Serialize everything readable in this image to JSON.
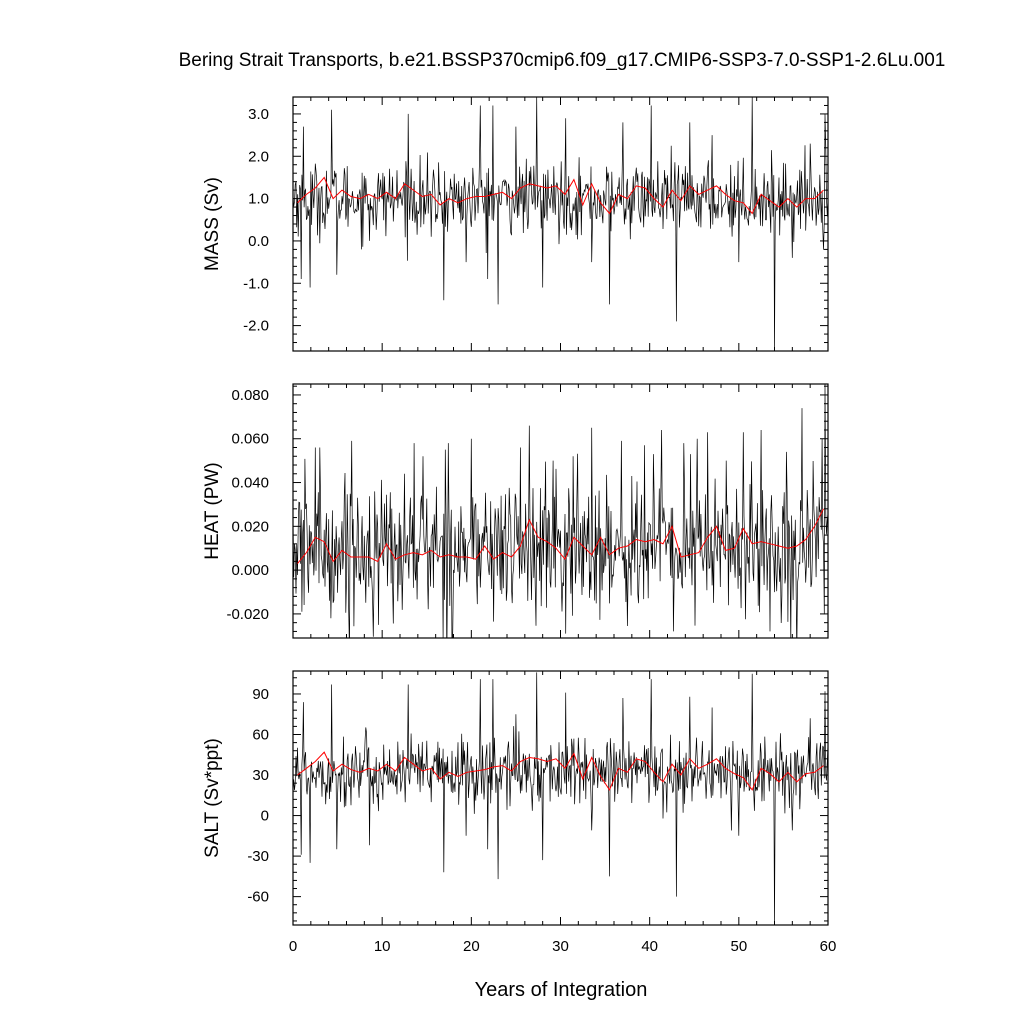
{
  "title": "Bering Strait Transports, b.e21.BSSP370cmip6.f09_g17.CMIP6-SSP3-7.0-SSP1-2.6Lu.001",
  "xlabel": "Years of Integration",
  "colors": {
    "monthly": "#000000",
    "annual": "#ff0000"
  },
  "chart_data": [
    {
      "type": "line",
      "ylabel": "MASS (Sv)",
      "xlim": [
        0,
        60
      ],
      "ylim": [
        -2.6,
        3.4
      ],
      "x_ticks": [
        0,
        10,
        20,
        30,
        40,
        50,
        60
      ],
      "y_ticks": [
        -2.0,
        -1.0,
        0.0,
        1.0,
        2.0,
        3.0
      ],
      "y_tick_labels": [
        "-2.0",
        "-1.0",
        "0.0",
        "1.0",
        "2.0",
        "3.0"
      ],
      "grid": false,
      "series": [
        {
          "style": "monthly",
          "monthly_keypoints": [
            [
              0.3,
              1.4
            ],
            [
              0.9,
              -0.9
            ],
            [
              1.2,
              2.7
            ],
            [
              1.9,
              -1.1
            ],
            [
              3.1,
              0.9
            ],
            [
              4.3,
              3.1
            ],
            [
              4.9,
              -0.8
            ],
            [
              8.6,
              0.0
            ],
            [
              12.9,
              3.0
            ],
            [
              15.5,
              0.1
            ],
            [
              16.9,
              -1.4
            ],
            [
              19.4,
              -0.5
            ],
            [
              21.0,
              3.2
            ],
            [
              21.8,
              -0.9
            ],
            [
              22.4,
              3.2
            ],
            [
              23.0,
              -1.5
            ],
            [
              25.0,
              2.7
            ],
            [
              27.3,
              3.4
            ],
            [
              28.0,
              -1.1
            ],
            [
              30.6,
              2.9
            ],
            [
              33.5,
              -0.5
            ],
            [
              35.5,
              -1.5
            ],
            [
              37.0,
              2.8
            ],
            [
              40.2,
              3.2
            ],
            [
              43.0,
              -1.9
            ],
            [
              44.5,
              2.8
            ],
            [
              47.0,
              2.5
            ],
            [
              50.0,
              -0.5
            ],
            [
              51.5,
              3.4
            ],
            [
              54.0,
              -2.6
            ],
            [
              56.0,
              -0.4
            ],
            [
              58.0,
              2.3
            ],
            [
              59.7,
              3.0
            ]
          ],
          "baseline": 1.0,
          "noise_sd": 0.42
        },
        {
          "style": "annual",
          "x": [
            0.5,
            1.5,
            2.5,
            3.5,
            4.5,
            5.5,
            6.5,
            7.5,
            8.5,
            9.5,
            10.5,
            11.5,
            12.5,
            13.5,
            14.5,
            15.5,
            16.5,
            17.5,
            18.5,
            19.5,
            20.5,
            21.5,
            22.5,
            23.5,
            24.5,
            25.5,
            26.5,
            27.5,
            28.5,
            29.5,
            30.5,
            31.5,
            32.5,
            33.5,
            34.5,
            35.5,
            36.5,
            37.5,
            38.5,
            39.5,
            40.5,
            41.5,
            42.5,
            43.5,
            44.5,
            45.5,
            46.5,
            47.5,
            48.5,
            49.5,
            50.5,
            51.5,
            52.5,
            53.5,
            54.5,
            55.5,
            56.5,
            57.5,
            58.5,
            59.5
          ],
          "values": [
            0.9,
            1.1,
            1.25,
            1.5,
            1.0,
            1.2,
            1.05,
            1.0,
            1.1,
            1.0,
            1.15,
            1.0,
            1.35,
            1.2,
            1.05,
            1.1,
            0.85,
            1.0,
            0.9,
            1.0,
            1.05,
            1.05,
            1.1,
            1.15,
            1.0,
            1.25,
            1.35,
            1.3,
            1.25,
            1.3,
            1.1,
            1.45,
            0.85,
            1.35,
            0.9,
            0.65,
            1.1,
            1.0,
            1.3,
            1.25,
            1.0,
            0.8,
            1.2,
            0.95,
            1.3,
            1.1,
            1.2,
            1.3,
            1.1,
            0.95,
            0.9,
            0.65,
            1.1,
            0.95,
            0.8,
            1.0,
            0.8,
            1.0,
            1.0,
            1.2
          ]
        }
      ]
    },
    {
      "type": "line",
      "ylabel": "HEAT (PW)",
      "xlim": [
        0,
        60
      ],
      "ylim": [
        -0.031,
        0.085
      ],
      "x_ticks": [
        0,
        10,
        20,
        30,
        40,
        50,
        60
      ],
      "y_ticks": [
        -0.02,
        0.0,
        0.02,
        0.04,
        0.06,
        0.08
      ],
      "y_tick_labels": [
        "-0.020",
        "0.000",
        "0.020",
        "0.040",
        "0.060",
        "0.080"
      ],
      "grid": false,
      "series": [
        {
          "style": "monthly",
          "monthly_keypoints": [
            [
              0.7,
              0.031
            ],
            [
              1.0,
              -0.019
            ],
            [
              2.5,
              0.056
            ],
            [
              3.0,
              0.056
            ],
            [
              4.1,
              -0.014
            ],
            [
              6.6,
              0.059
            ],
            [
              9.6,
              -0.025
            ],
            [
              13.6,
              0.058
            ],
            [
              14.6,
              0.052
            ],
            [
              17.4,
              0.058
            ],
            [
              20.0,
              0.06
            ],
            [
              25.5,
              0.056
            ],
            [
              26.5,
              0.066
            ],
            [
              29.2,
              0.05
            ],
            [
              30.6,
              -0.029
            ],
            [
              31.4,
              0.052
            ],
            [
              33.5,
              0.065
            ],
            [
              36.8,
              0.059
            ],
            [
              39.4,
              0.057
            ],
            [
              40.4,
              0.053
            ],
            [
              41.3,
              0.064
            ],
            [
              42.7,
              -0.028
            ],
            [
              43.8,
              0.058
            ],
            [
              45.3,
              0.06
            ],
            [
              46.5,
              0.063
            ],
            [
              48.6,
              0.05
            ],
            [
              50.5,
              0.063
            ],
            [
              52.5,
              0.064
            ],
            [
              53.5,
              -0.028
            ],
            [
              55.3,
              0.054
            ],
            [
              57.1,
              0.074
            ],
            [
              59.3,
              0.06
            ],
            [
              59.7,
              0.085
            ]
          ],
          "baseline": 0.01,
          "noise_sd": 0.016
        },
        {
          "style": "annual",
          "x": [
            0.5,
            1.5,
            2.5,
            3.5,
            4.5,
            5.5,
            6.5,
            7.5,
            8.5,
            9.5,
            10.5,
            11.5,
            12.5,
            13.5,
            14.5,
            15.5,
            16.5,
            17.5,
            18.5,
            19.5,
            20.5,
            21.5,
            22.5,
            23.5,
            24.5,
            25.5,
            26.5,
            27.5,
            28.5,
            29.5,
            30.5,
            31.5,
            32.5,
            33.5,
            34.5,
            35.5,
            36.5,
            37.5,
            38.5,
            39.5,
            40.5,
            41.5,
            42.5,
            43.5,
            44.5,
            45.5,
            46.5,
            47.5,
            48.5,
            49.5,
            50.5,
            51.5,
            52.5,
            53.5,
            54.5,
            55.5,
            56.5,
            57.5,
            58.5,
            59.5
          ],
          "values": [
            0.003,
            0.008,
            0.015,
            0.013,
            0.004,
            0.009,
            0.006,
            0.006,
            0.006,
            0.004,
            0.012,
            0.005,
            0.007,
            0.008,
            0.007,
            0.009,
            0.006,
            0.007,
            0.006,
            0.006,
            0.005,
            0.011,
            0.005,
            0.008,
            0.006,
            0.011,
            0.023,
            0.015,
            0.013,
            0.01,
            0.005,
            0.015,
            0.011,
            0.007,
            0.015,
            0.007,
            0.01,
            0.011,
            0.014,
            0.013,
            0.014,
            0.012,
            0.02,
            0.006,
            0.007,
            0.008,
            0.015,
            0.02,
            0.009,
            0.01,
            0.019,
            0.012,
            0.013,
            0.012,
            0.011,
            0.01,
            0.011,
            0.014,
            0.02,
            0.028
          ]
        }
      ]
    },
    {
      "type": "line",
      "ylabel": "SALT (Sv*ppt)",
      "xlim": [
        0,
        60
      ],
      "ylim": [
        -81,
        107
      ],
      "x_ticks": [
        0,
        10,
        20,
        30,
        40,
        50,
        60
      ],
      "x_tick_labels": [
        "0",
        "10",
        "20",
        "30",
        "40",
        "50",
        "60"
      ],
      "y_ticks": [
        -60,
        -30,
        0,
        30,
        60,
        90
      ],
      "y_tick_labels": [
        "-60",
        "-30",
        "0",
        "30",
        "60",
        "90"
      ],
      "grid": false,
      "series": [
        {
          "style": "monthly",
          "monthly_keypoints": [
            [
              0.3,
              44
            ],
            [
              0.9,
              -29
            ],
            [
              1.2,
              84
            ],
            [
              1.9,
              -35
            ],
            [
              3.1,
              40
            ],
            [
              4.3,
              97
            ],
            [
              4.9,
              -25
            ],
            [
              8.6,
              -22
            ],
            [
              12.9,
              97
            ],
            [
              15.5,
              10
            ],
            [
              16.9,
              -42
            ],
            [
              19.4,
              -15
            ],
            [
              21.0,
              101
            ],
            [
              21.8,
              -25
            ],
            [
              22.4,
              101
            ],
            [
              23.0,
              -47
            ],
            [
              25.0,
              75
            ],
            [
              27.3,
              106
            ],
            [
              28.0,
              -33
            ],
            [
              30.6,
              91
            ],
            [
              33.5,
              -11
            ],
            [
              35.5,
              -45
            ],
            [
              37.0,
              87
            ],
            [
              40.2,
              101
            ],
            [
              43.0,
              -60
            ],
            [
              44.5,
              88
            ],
            [
              47.0,
              80
            ],
            [
              50.0,
              -15
            ],
            [
              51.5,
              105
            ],
            [
              54.0,
              -81
            ],
            [
              56.0,
              -11
            ],
            [
              58.0,
              72
            ],
            [
              59.7,
              92
            ]
          ],
          "baseline": 32,
          "noise_sd": 13
        },
        {
          "style": "annual",
          "x": [
            0.5,
            1.5,
            2.5,
            3.5,
            4.5,
            5.5,
            6.5,
            7.5,
            8.5,
            9.5,
            10.5,
            11.5,
            12.5,
            13.5,
            14.5,
            15.5,
            16.5,
            17.5,
            18.5,
            19.5,
            20.5,
            21.5,
            22.5,
            23.5,
            24.5,
            25.5,
            26.5,
            27.5,
            28.5,
            29.5,
            30.5,
            31.5,
            32.5,
            33.5,
            34.5,
            35.5,
            36.5,
            37.5,
            38.5,
            39.5,
            40.5,
            41.5,
            42.5,
            43.5,
            44.5,
            45.5,
            46.5,
            47.5,
            48.5,
            49.5,
            50.5,
            51.5,
            52.5,
            53.5,
            54.5,
            55.5,
            56.5,
            57.5,
            58.5,
            59.5
          ],
          "values": [
            30,
            35,
            40,
            47,
            33,
            38,
            34,
            32,
            35,
            33,
            38,
            33,
            43,
            38,
            33,
            35,
            27,
            32,
            29,
            32,
            33,
            34,
            36,
            37,
            33,
            40,
            43,
            42,
            40,
            42,
            35,
            46,
            27,
            43,
            29,
            19,
            35,
            32,
            42,
            40,
            32,
            25,
            38,
            30,
            42,
            35,
            38,
            42,
            35,
            31,
            28,
            19,
            35,
            31,
            25,
            32,
            25,
            31,
            32,
            37
          ]
        }
      ]
    }
  ]
}
